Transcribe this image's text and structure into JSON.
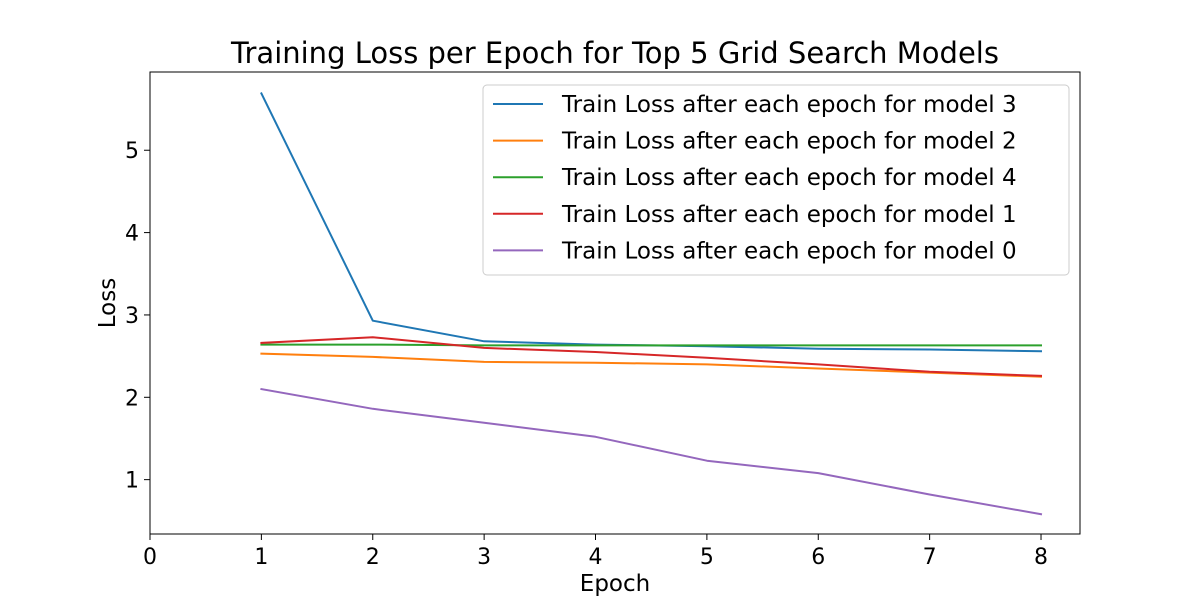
{
  "chart_data": {
    "type": "line",
    "title": "Training Loss per Epoch for Top 5 Grid Search Models",
    "xlabel": "Epoch",
    "ylabel": "Loss",
    "xlim": [
      0,
      8.35
    ],
    "ylim": [
      0.34,
      5.95
    ],
    "xticks": [
      0,
      1,
      2,
      3,
      4,
      5,
      6,
      7,
      8
    ],
    "yticks": [
      1,
      2,
      3,
      4,
      5
    ],
    "grid": false,
    "legend_position": "top-right",
    "x": [
      1,
      2,
      3,
      4,
      5,
      6,
      7,
      8
    ],
    "series": [
      {
        "name": "Train Loss after each epoch for model 3",
        "color": "#1f77b4",
        "values": [
          5.69,
          2.93,
          2.68,
          2.64,
          2.62,
          2.59,
          2.58,
          2.56
        ]
      },
      {
        "name": "Train Loss after each epoch for model 2",
        "color": "#ff7f0e",
        "values": [
          2.53,
          2.49,
          2.43,
          2.42,
          2.4,
          2.35,
          2.3,
          2.25
        ]
      },
      {
        "name": "Train Loss after each epoch for model 4",
        "color": "#2ca02c",
        "values": [
          2.64,
          2.64,
          2.63,
          2.63,
          2.63,
          2.63,
          2.63,
          2.63
        ]
      },
      {
        "name": "Train Loss after each epoch for model 1",
        "color": "#d62728",
        "values": [
          2.66,
          2.73,
          2.6,
          2.55,
          2.48,
          2.4,
          2.31,
          2.26
        ]
      },
      {
        "name": "Train Loss after each epoch for model 0",
        "color": "#9467bd",
        "values": [
          2.1,
          1.86,
          1.69,
          1.52,
          1.23,
          1.08,
          0.82,
          0.58
        ]
      }
    ]
  }
}
